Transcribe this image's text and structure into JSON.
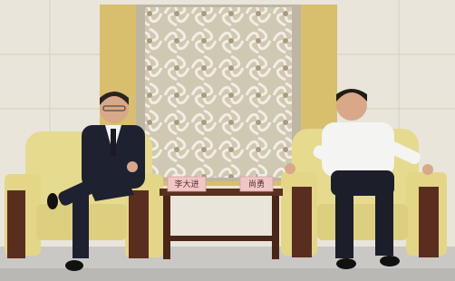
{
  "placards": [
    {
      "label": "李大进"
    },
    {
      "label": "尚勇"
    }
  ]
}
